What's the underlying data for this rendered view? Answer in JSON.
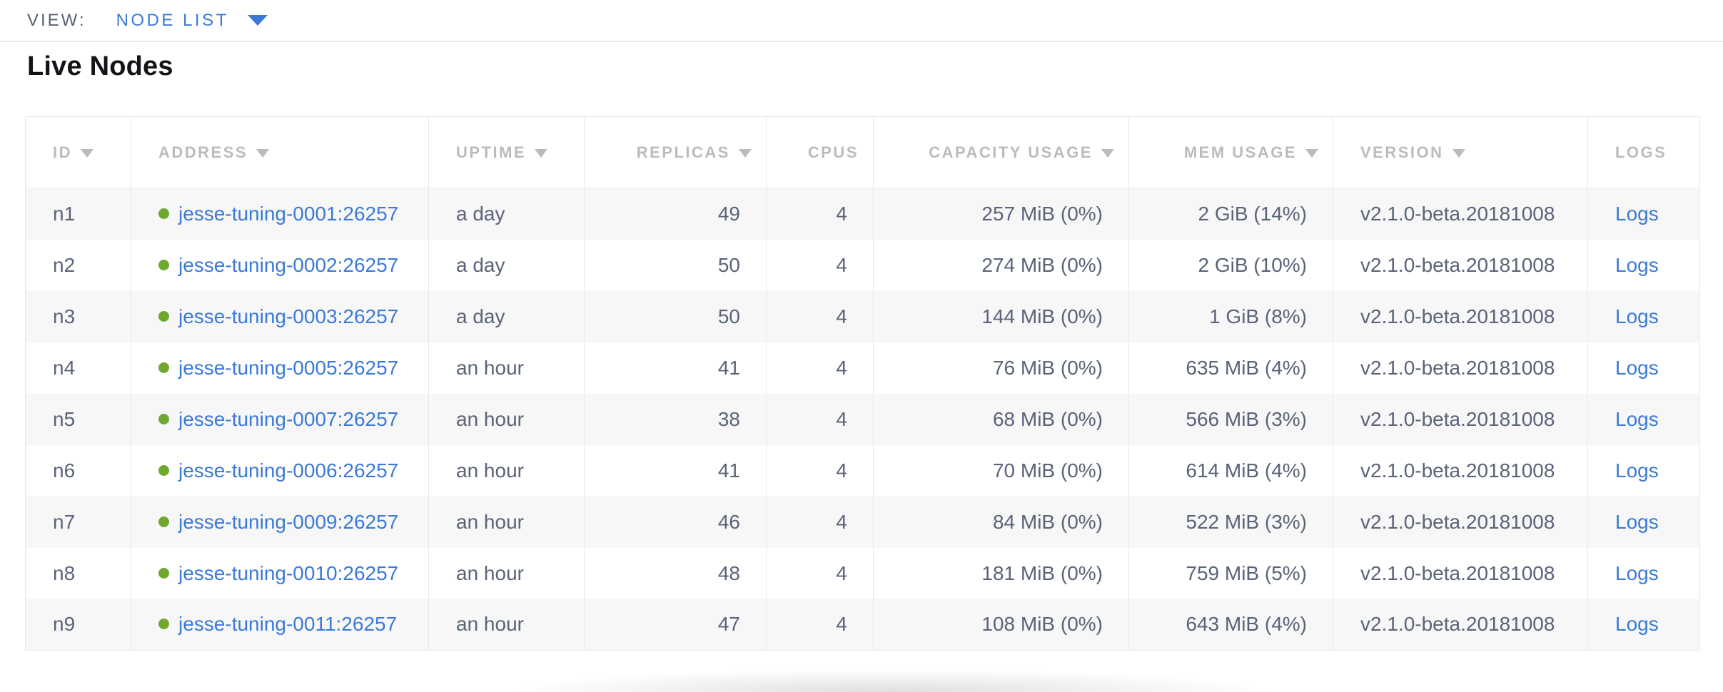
{
  "view_bar": {
    "label": "VIEW:",
    "selected": "NODE LIST"
  },
  "page": {
    "title": "Live Nodes"
  },
  "table": {
    "columns": [
      {
        "key": "id",
        "label": "ID",
        "sortable": true,
        "align": "left"
      },
      {
        "key": "address",
        "label": "ADDRESS",
        "sortable": true,
        "align": "left"
      },
      {
        "key": "uptime",
        "label": "UPTIME",
        "sortable": true,
        "align": "left"
      },
      {
        "key": "replicas",
        "label": "REPLICAS",
        "sortable": true,
        "align": "right"
      },
      {
        "key": "cpus",
        "label": "CPUS",
        "sortable": false,
        "align": "right"
      },
      {
        "key": "capacity",
        "label": "CAPACITY USAGE",
        "sortable": true,
        "align": "right"
      },
      {
        "key": "mem",
        "label": "MEM USAGE",
        "sortable": true,
        "align": "right"
      },
      {
        "key": "version",
        "label": "VERSION",
        "sortable": true,
        "align": "left"
      },
      {
        "key": "logs",
        "label": "LOGS",
        "sortable": false,
        "align": "left"
      }
    ],
    "rows": [
      {
        "id": "n1",
        "address": "jesse-tuning-0001:26257",
        "status": "healthy",
        "uptime": "a day",
        "replicas": "49",
        "cpus": "4",
        "capacity": "257 MiB (0%)",
        "mem": "2 GiB (14%)",
        "version": "v2.1.0-beta.20181008",
        "logs": "Logs"
      },
      {
        "id": "n2",
        "address": "jesse-tuning-0002:26257",
        "status": "healthy",
        "uptime": "a day",
        "replicas": "50",
        "cpus": "4",
        "capacity": "274 MiB (0%)",
        "mem": "2 GiB (10%)",
        "version": "v2.1.0-beta.20181008",
        "logs": "Logs"
      },
      {
        "id": "n3",
        "address": "jesse-tuning-0003:26257",
        "status": "healthy",
        "uptime": "a day",
        "replicas": "50",
        "cpus": "4",
        "capacity": "144 MiB (0%)",
        "mem": "1 GiB (8%)",
        "version": "v2.1.0-beta.20181008",
        "logs": "Logs"
      },
      {
        "id": "n4",
        "address": "jesse-tuning-0005:26257",
        "status": "healthy",
        "uptime": "an hour",
        "replicas": "41",
        "cpus": "4",
        "capacity": "76 MiB (0%)",
        "mem": "635 MiB (4%)",
        "version": "v2.1.0-beta.20181008",
        "logs": "Logs"
      },
      {
        "id": "n5",
        "address": "jesse-tuning-0007:26257",
        "status": "healthy",
        "uptime": "an hour",
        "replicas": "38",
        "cpus": "4",
        "capacity": "68 MiB (0%)",
        "mem": "566 MiB (3%)",
        "version": "v2.1.0-beta.20181008",
        "logs": "Logs"
      },
      {
        "id": "n6",
        "address": "jesse-tuning-0006:26257",
        "status": "healthy",
        "uptime": "an hour",
        "replicas": "41",
        "cpus": "4",
        "capacity": "70 MiB (0%)",
        "mem": "614 MiB (4%)",
        "version": "v2.1.0-beta.20181008",
        "logs": "Logs"
      },
      {
        "id": "n7",
        "address": "jesse-tuning-0009:26257",
        "status": "healthy",
        "uptime": "an hour",
        "replicas": "46",
        "cpus": "4",
        "capacity": "84 MiB (0%)",
        "mem": "522 MiB (3%)",
        "version": "v2.1.0-beta.20181008",
        "logs": "Logs"
      },
      {
        "id": "n8",
        "address": "jesse-tuning-0010:26257",
        "status": "healthy",
        "uptime": "an hour",
        "replicas": "48",
        "cpus": "4",
        "capacity": "181 MiB (0%)",
        "mem": "759 MiB (5%)",
        "version": "v2.1.0-beta.20181008",
        "logs": "Logs"
      },
      {
        "id": "n9",
        "address": "jesse-tuning-0011:26257",
        "status": "healthy",
        "uptime": "an hour",
        "replicas": "47",
        "cpus": "4",
        "capacity": "108 MiB (0%)",
        "mem": "643 MiB (4%)",
        "version": "v2.1.0-beta.20181008",
        "logs": "Logs"
      }
    ]
  },
  "icons": {
    "view_caret": "caret-down-icon",
    "sort": "sort-arrow-icon",
    "status": "healthy-status-dot"
  },
  "colors": {
    "link": "#3b7ad7",
    "healthy_dot": "#6ea82f",
    "header_text": "#b9bbbe",
    "body_text": "#5a6378",
    "border": "#e7e7e8",
    "row_alt_bg": "#f7f7f8"
  }
}
